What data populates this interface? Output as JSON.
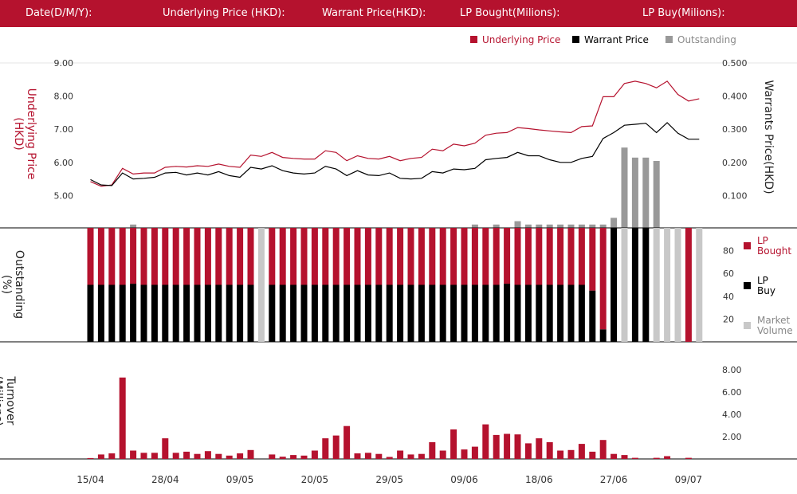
{
  "header": {
    "date_label": "Date(D/M/Y):",
    "underlying_label": "Underlying Price (HKD):",
    "warrant_label": "Warrant  Price(HKD):",
    "lp_bought_label": "LP Bought(Milions):",
    "lp_buy_label": "LP Buy(Milions):"
  },
  "colors": {
    "red": "#b5122e",
    "black": "#000000",
    "gray": "#999999",
    "lightgray": "#c8c8c8"
  },
  "chart_data": [
    {
      "type": "line",
      "title": "",
      "legend": [
        "Underlying Price",
        "Warrant  Price",
        "Outstanding"
      ],
      "legend_placement": "top-right",
      "ylabel_left": "Underlying Price (HKD)",
      "ylabel_right": "Warrants  Price(HKD)",
      "yticks_left": [
        "9.00",
        "8.00",
        "7.00",
        "6.00",
        "5.00"
      ],
      "yticks_right": [
        "0.500",
        "0.400",
        "0.300",
        "0.200",
        "0.100"
      ],
      "ylim_left": [
        4.0,
        9.0
      ],
      "ylim_right": [
        0.0,
        0.5
      ],
      "series": [
        {
          "name": "Underlying Price",
          "values": [
            5.42,
            5.28,
            5.32,
            5.82,
            5.65,
            5.68,
            5.68,
            5.85,
            5.88,
            5.86,
            5.9,
            5.88,
            5.95,
            5.88,
            5.85,
            6.22,
            6.18,
            6.3,
            6.15,
            6.12,
            6.1,
            6.1,
            6.35,
            6.3,
            6.05,
            6.2,
            6.12,
            6.1,
            6.18,
            6.05,
            6.12,
            6.15,
            6.4,
            6.35,
            6.55,
            6.5,
            6.58,
            6.82,
            6.88,
            6.9,
            7.05,
            7.02,
            6.98,
            6.95,
            6.92,
            6.9,
            7.08,
            7.1,
            7.98,
            7.98,
            8.38,
            8.45,
            8.38,
            8.25,
            8.45,
            8.05,
            7.85,
            7.92
          ]
        },
        {
          "name": "Warrant  Price",
          "values": [
            0.148,
            0.132,
            0.13,
            0.168,
            0.15,
            0.152,
            0.155,
            0.168,
            0.17,
            0.162,
            0.168,
            0.162,
            0.172,
            0.16,
            0.155,
            0.185,
            0.18,
            0.19,
            0.175,
            0.168,
            0.165,
            0.168,
            0.188,
            0.18,
            0.16,
            0.175,
            0.162,
            0.16,
            0.168,
            0.152,
            0.15,
            0.152,
            0.172,
            0.168,
            0.18,
            0.178,
            0.182,
            0.208,
            0.212,
            0.215,
            0.23,
            0.22,
            0.22,
            0.208,
            0.2,
            0.2,
            0.212,
            0.218,
            0.272,
            0.29,
            0.312,
            0.315,
            0.318,
            0.29,
            0.32,
            0.288,
            0.27,
            0.27
          ]
        }
      ]
    },
    {
      "type": "bar",
      "title": "",
      "ylabel": "Outstanding (%)",
      "yticks": [
        "80",
        "60",
        "40",
        "20"
      ],
      "ylim": [
        0,
        100
      ],
      "legend": [
        "LP Bought",
        "LP Buy",
        "Market Volume"
      ],
      "legend_placement": "right",
      "bars": [
        {
          "b": 50,
          "r": 50
        },
        {
          "b": 50,
          "r": 50
        },
        {
          "b": 50,
          "r": 50
        },
        {
          "b": 50,
          "r": 50
        },
        {
          "b": 51,
          "r": 49
        },
        {
          "b": 50,
          "r": 50
        },
        {
          "b": 50,
          "r": 50
        },
        {
          "b": 50,
          "r": 50
        },
        {
          "b": 50,
          "r": 50
        },
        {
          "b": 50,
          "r": 50
        },
        {
          "b": 50,
          "r": 50
        },
        {
          "b": 50,
          "r": 50
        },
        {
          "b": 50,
          "r": 50
        },
        {
          "b": 50,
          "r": 50
        },
        {
          "b": 50,
          "r": 50
        },
        {
          "b": 50,
          "r": 50
        },
        {
          "g": 100
        },
        {
          "b": 50,
          "r": 50
        },
        {
          "b": 50,
          "r": 50
        },
        {
          "b": 50,
          "r": 50
        },
        {
          "b": 50,
          "r": 50
        },
        {
          "b": 50,
          "r": 50
        },
        {
          "b": 50,
          "r": 50
        },
        {
          "b": 50,
          "r": 50
        },
        {
          "b": 50,
          "r": 50
        },
        {
          "b": 50,
          "r": 50
        },
        {
          "b": 50,
          "r": 50
        },
        {
          "b": 50,
          "r": 50
        },
        {
          "b": 50,
          "r": 50
        },
        {
          "b": 50,
          "r": 50
        },
        {
          "b": 50,
          "r": 50
        },
        {
          "b": 50,
          "r": 50
        },
        {
          "b": 50,
          "r": 50
        },
        {
          "b": 50,
          "r": 50
        },
        {
          "b": 50,
          "r": 50
        },
        {
          "b": 50,
          "r": 50
        },
        {
          "b": 50,
          "r": 50
        },
        {
          "b": 50,
          "r": 50
        },
        {
          "b": 50,
          "r": 50
        },
        {
          "b": 51,
          "r": 49
        },
        {
          "b": 50,
          "r": 50
        },
        {
          "b": 50,
          "r": 50
        },
        {
          "b": 50,
          "r": 50
        },
        {
          "b": 50,
          "r": 50
        },
        {
          "b": 50,
          "r": 50
        },
        {
          "b": 50,
          "r": 50
        },
        {
          "b": 50,
          "r": 50
        },
        {
          "b": 45,
          "r": 55
        },
        {
          "b": 11,
          "r": 89
        },
        {
          "b": 100
        },
        {
          "g": 100
        },
        {
          "b": 100
        },
        {
          "b": 100
        },
        {
          "g": 100
        },
        {
          "g": 100
        },
        {
          "g": 100
        },
        {
          "r": 100
        },
        {
          "g": 100
        }
      ],
      "outstanding_top": [
        0,
        0,
        0,
        0,
        1,
        0,
        0,
        0,
        0,
        0,
        0,
        0,
        0,
        0,
        0,
        0,
        0,
        0,
        0,
        0,
        0,
        0,
        0,
        0,
        0,
        0,
        0,
        0,
        0,
        0,
        0,
        0,
        0,
        0,
        0,
        0,
        1,
        0,
        1,
        0,
        2,
        1,
        1,
        1,
        1,
        1,
        1,
        1,
        1,
        3,
        24,
        21,
        21,
        20,
        0,
        0,
        0,
        0
      ]
    },
    {
      "type": "bar",
      "title": "",
      "ylabel": "Turnover (Millions)",
      "yticks": [
        "8.00",
        "6.00",
        "4.00",
        "2.00"
      ],
      "ylim": [
        0,
        8.8
      ],
      "x_ticks": [
        "15/04",
        "28/04",
        "09/05",
        "20/05",
        "29/05",
        "09/06",
        "18/06",
        "27/06",
        "09/07"
      ],
      "values": [
        0.08,
        0.4,
        0.5,
        7.3,
        0.75,
        0.55,
        0.55,
        1.85,
        0.55,
        0.65,
        0.45,
        0.7,
        0.45,
        0.3,
        0.5,
        0.8,
        0,
        0.4,
        0.2,
        0.35,
        0.3,
        0.75,
        1.85,
        2.1,
        2.95,
        0.5,
        0.55,
        0.45,
        0.18,
        0.75,
        0.4,
        0.45,
        1.5,
        0.75,
        2.65,
        0.85,
        1.1,
        3.1,
        2.15,
        2.25,
        2.2,
        1.4,
        1.85,
        1.5,
        0.75,
        0.8,
        1.35,
        0.65,
        1.7,
        0.45,
        0.35,
        0.1,
        0,
        0.1,
        0.25,
        0,
        0.1,
        0
      ]
    }
  ]
}
